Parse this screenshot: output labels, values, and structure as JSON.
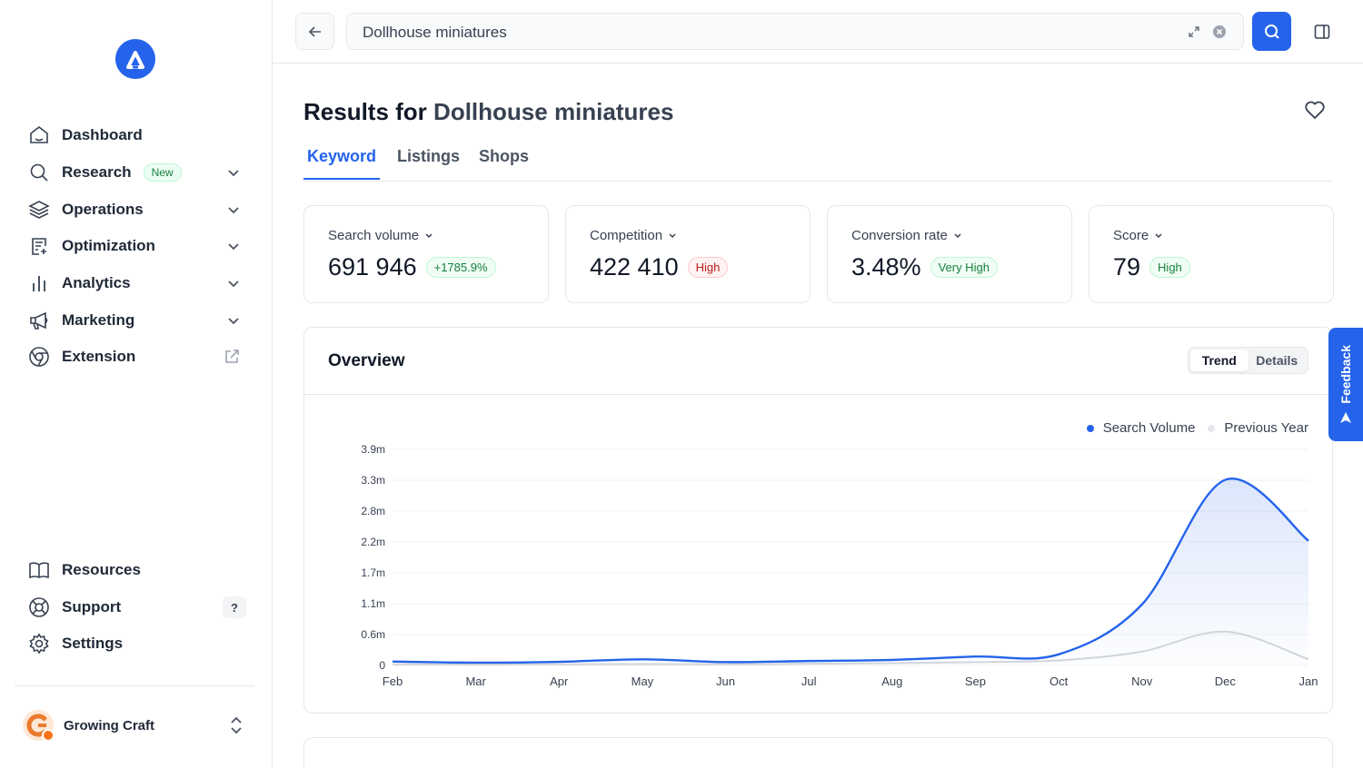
{
  "sidebar": {
    "items": [
      {
        "label": "Dashboard"
      },
      {
        "label": "Research",
        "badge": "New"
      },
      {
        "label": "Operations"
      },
      {
        "label": "Optimization"
      },
      {
        "label": "Analytics"
      },
      {
        "label": "Marketing"
      },
      {
        "label": "Extension"
      }
    ],
    "bottom_items": [
      {
        "label": "Resources"
      },
      {
        "label": "Support",
        "badge": "?"
      },
      {
        "label": "Settings"
      }
    ],
    "account": {
      "name": "Growing Craft"
    }
  },
  "search": {
    "value": "Dollhouse miniatures"
  },
  "page": {
    "title_prefix": "Results for",
    "query": "Dollhouse miniatures"
  },
  "tabs": [
    {
      "label": "Keyword",
      "active": true
    },
    {
      "label": "Listings",
      "active": false
    },
    {
      "label": "Shops",
      "active": false
    }
  ],
  "stats": [
    {
      "label": "Search volume",
      "value": "691 946",
      "badge": "+1785.9%",
      "badge_tone": "green"
    },
    {
      "label": "Competition",
      "value": "422 410",
      "badge": "High",
      "badge_tone": "red"
    },
    {
      "label": "Conversion rate",
      "value": "3.48%",
      "badge": "Very High",
      "badge_tone": "green"
    },
    {
      "label": "Score",
      "value": "79",
      "badge": "High",
      "badge_tone": "green"
    }
  ],
  "overview": {
    "title": "Overview",
    "toggle": [
      "Trend",
      "Details"
    ],
    "active_toggle": "Trend"
  },
  "feedback": {
    "label": "Feedback"
  },
  "colors": {
    "accent": "#2563eb",
    "previous_year": "#d1d5db"
  },
  "chart_data": {
    "type": "area",
    "x": [
      "Feb",
      "Mar",
      "Apr",
      "May",
      "Jun",
      "Jul",
      "Aug",
      "Sep",
      "Oct",
      "Nov",
      "Dec",
      "Jan"
    ],
    "y_ticks": [
      "0",
      "0.6m",
      "1.1m",
      "1.7m",
      "2.2m",
      "2.8m",
      "3.3m",
      "3.9m"
    ],
    "ylim": [
      0,
      3900000
    ],
    "series": [
      {
        "name": "Search Volume",
        "values": [
          70000,
          50000,
          65000,
          110000,
          60000,
          80000,
          100000,
          160000,
          200000,
          1100000,
          3350000,
          2250000
        ]
      },
      {
        "name": "Previous Year",
        "values": [
          20000,
          15000,
          20000,
          25000,
          20000,
          30000,
          40000,
          60000,
          90000,
          250000,
          610000,
          110000
        ]
      }
    ],
    "legend_position": "top-right",
    "grid": true
  }
}
